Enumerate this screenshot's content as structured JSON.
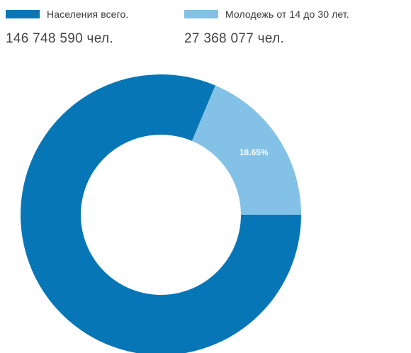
{
  "legend": {
    "total": {
      "label": "Населения всего.",
      "value": "146 748 590 чел.",
      "color": "#0776b6"
    },
    "youth": {
      "label": "Молодежь от 14 до 30 лет.",
      "value": "27 368 077 чел.",
      "color": "#84c1e6"
    }
  },
  "chart_data": {
    "type": "pie",
    "donut": true,
    "slices": [
      {
        "name": "Населения всего.",
        "value": 81.35,
        "color": "#0776b6",
        "label": ""
      },
      {
        "name": "Молодежь от 14 до 30 лет.",
        "value": 18.65,
        "color": "#84c1e6",
        "label": "18.65%"
      }
    ],
    "start": "3 o'clock",
    "direction": "clockwise"
  }
}
